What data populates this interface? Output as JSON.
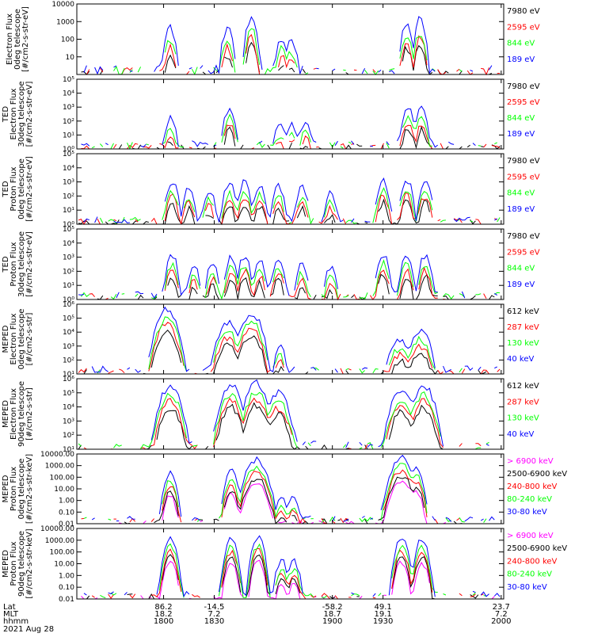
{
  "colors": {
    "black": "#000000",
    "red": "#ff0000",
    "green": "#00ff00",
    "blue": "#0000ff",
    "magenta": "#ff00ff"
  },
  "xaxis": {
    "row_labels": [
      "Lat",
      "MLT",
      "hhmm"
    ],
    "columns": [
      {
        "lat": "86.2",
        "mlt": "18.2",
        "hhmm": "1800",
        "time": 1800
      },
      {
        "lat": "-14.5",
        "mlt": "7.2",
        "hhmm": "1830",
        "time": 1830
      },
      {
        "lat": "-58.2",
        "mlt": "18.7",
        "hhmm": "1900",
        "time": 1900
      },
      {
        "lat": "49.1",
        "mlt": "19.1",
        "hhmm": "1930",
        "time": 1930
      },
      {
        "lat": "23.7",
        "mlt": "7.2",
        "hhmm": "2000",
        "time": 2000
      }
    ],
    "date": "2021 Aug 28"
  },
  "chart_data": [
    {
      "type": "line",
      "scale": "log",
      "ylim": [
        1,
        10000
      ],
      "ylabel_lines": [
        "Electron Flux",
        "0deg telescope",
        "[#/cm2-s-str-eV]"
      ],
      "ytick_labels": [
        "10",
        "100",
        "1000",
        "10000"
      ],
      "series": [
        {
          "name": "7980 eV",
          "color": "#000000"
        },
        {
          "name": "2595 eV",
          "color": "#ff0000"
        },
        {
          "name": "844 eV",
          "color": "#00ff00"
        },
        {
          "name": "189 eV",
          "color": "#0000ff"
        }
      ],
      "events": [
        [
          1804,
          300
        ],
        [
          1838,
          300
        ],
        [
          1852,
          1000
        ],
        [
          1870,
          80
        ],
        [
          1876,
          60
        ],
        [
          1944,
          600
        ],
        [
          1952,
          800
        ]
      ]
    },
    {
      "type": "line",
      "scale": "log",
      "ylim": [
        1,
        100000
      ],
      "ylabel_lines": [
        "TED",
        "Electron Flux",
        "30deg telescope",
        "[#/cm2-s-str-eV]"
      ],
      "ytick_labels": [
        "10⁰",
        "10¹",
        "10²",
        "10³",
        "10⁴",
        "10⁵"
      ],
      "series": [
        {
          "name": "7980 eV",
          "color": "#000000"
        },
        {
          "name": "2595 eV",
          "color": "#ff0000"
        },
        {
          "name": "844 eV",
          "color": "#00ff00"
        },
        {
          "name": "189 eV",
          "color": "#0000ff"
        }
      ],
      "events": [
        [
          1804,
          100
        ],
        [
          1839,
          500
        ],
        [
          1869,
          30
        ],
        [
          1876,
          40
        ],
        [
          1884,
          50
        ],
        [
          1945,
          600
        ],
        [
          1953,
          500
        ]
      ]
    },
    {
      "type": "line",
      "scale": "log",
      "ylim": [
        1,
        100000
      ],
      "ylabel_lines": [
        "TED",
        "Proton Flux",
        "0deg telescope",
        "[#/cm2-s-str-eV]"
      ],
      "ytick_labels": [
        "10⁰",
        "10¹",
        "10²",
        "10³",
        "10⁴",
        "10⁵"
      ],
      "series": [
        {
          "name": "7980 eV",
          "color": "#000000"
        },
        {
          "name": "2595 eV",
          "color": "#ff0000"
        },
        {
          "name": "844 eV",
          "color": "#00ff00"
        },
        {
          "name": "189 eV",
          "color": "#0000ff"
        }
      ],
      "events": [
        [
          1805,
          700
        ],
        [
          1815,
          250
        ],
        [
          1827,
          150
        ],
        [
          1839,
          500
        ],
        [
          1848,
          600
        ],
        [
          1857,
          400
        ],
        [
          1868,
          300
        ],
        [
          1882,
          250
        ],
        [
          1899,
          100
        ],
        [
          1930,
          800
        ],
        [
          1944,
          900
        ],
        [
          1955,
          800
        ]
      ]
    },
    {
      "type": "line",
      "scale": "log",
      "ylim": [
        1,
        100000
      ],
      "ylabel_lines": [
        "TED",
        "Proton Flux",
        "30deg telescope",
        "[#/cm2-s-str-eV]"
      ],
      "ytick_labels": [
        "10⁰",
        "10¹",
        "10²",
        "10³",
        "10⁴",
        "10⁵"
      ],
      "series": [
        {
          "name": "7980 eV",
          "color": "#000000"
        },
        {
          "name": "2595 eV",
          "color": "#ff0000"
        },
        {
          "name": "844 eV",
          "color": "#00ff00"
        },
        {
          "name": "189 eV",
          "color": "#0000ff"
        }
      ],
      "events": [
        [
          1805,
          800
        ],
        [
          1818,
          150
        ],
        [
          1829,
          200
        ],
        [
          1840,
          600
        ],
        [
          1848,
          800
        ],
        [
          1857,
          300
        ],
        [
          1868,
          600
        ],
        [
          1882,
          200
        ],
        [
          1899,
          100
        ],
        [
          1930,
          1000
        ],
        [
          1944,
          900
        ],
        [
          1955,
          900
        ]
      ]
    },
    {
      "type": "line",
      "scale": "log",
      "ylim": [
        10,
        1000000
      ],
      "ylabel_lines": [
        "MEPED",
        "Electron Flux",
        "0deg telescope",
        "[#/cm2-s-str]"
      ],
      "ytick_labels": [
        "10¹",
        "10²",
        "10³",
        "10⁴",
        "10⁵",
        "10⁶"
      ],
      "series": [
        {
          "name": "612 keV",
          "color": "#000000"
        },
        {
          "name": "287 keV",
          "color": "#ff0000"
        },
        {
          "name": "130 keV",
          "color": "#00ff00"
        },
        {
          "name": "40 keV",
          "color": "#0000ff"
        }
      ],
      "events": [
        [
          1802,
          300000
        ],
        [
          1838,
          30000
        ],
        [
          1852,
          150000
        ],
        [
          1869,
          600
        ],
        [
          1940,
          2000
        ],
        [
          1952,
          8000
        ]
      ]
    },
    {
      "type": "line",
      "scale": "log",
      "ylim": [
        10,
        1000000
      ],
      "ylabel_lines": [
        "MEPED",
        "Electron Flux",
        "90deg telescope",
        "[#/cm2-s-str]"
      ],
      "ytick_labels": [
        "10¹",
        "10²",
        "10³",
        "10⁴",
        "10⁵",
        "10⁶"
      ],
      "series": [
        {
          "name": "612 keV",
          "color": "#000000"
        },
        {
          "name": "287 keV",
          "color": "#ff0000"
        },
        {
          "name": "130 keV",
          "color": "#00ff00"
        },
        {
          "name": "40 keV",
          "color": "#0000ff"
        }
      ],
      "events": [
        [
          1804,
          200000
        ],
        [
          1840,
          200000
        ],
        [
          1855,
          300000
        ],
        [
          1868,
          60000
        ],
        [
          1941,
          100000
        ],
        [
          1954,
          200000
        ]
      ]
    },
    {
      "type": "line",
      "scale": "log",
      "ylim": [
        0.01,
        10000
      ],
      "ylabel_lines": [
        "MEPED",
        "Proton Flux",
        "0deg telescope",
        "[#/cm2-s-str-keV]"
      ],
      "ytick_labels": [
        "0.01",
        "0.10",
        "1.00",
        "10.00",
        "100.00",
        "1000.00",
        "10000.00"
      ],
      "series": [
        {
          "name": "> 6900 keV",
          "color": "#ff00ff"
        },
        {
          "name": "2500-6900 keV",
          "color": "#000000"
        },
        {
          "name": "240-800 keV",
          "color": "#ff0000"
        },
        {
          "name": "80-240 keV",
          "color": "#00ff00"
        },
        {
          "name": "30-80 keV",
          "color": "#0000ff"
        }
      ],
      "events": [
        [
          1804,
          150
        ],
        [
          1840,
          200
        ],
        [
          1855,
          2000
        ],
        [
          1870,
          1
        ],
        [
          1877,
          1
        ],
        [
          1941,
          3000
        ],
        [
          1950,
          400
        ]
      ]
    },
    {
      "type": "line",
      "scale": "log",
      "ylim": [
        0.01,
        10000
      ],
      "ylabel_lines": [
        "MEPED",
        "Proton Flux",
        "90deg telescope",
        "[#/cm2-s-str-keV]"
      ],
      "ytick_labels": [
        "0.01",
        "0.10",
        "1.00",
        "10.00",
        "100.00",
        "1000.00",
        "10000.00"
      ],
      "series": [
        {
          "name": "> 6900 keV",
          "color": "#ff00ff"
        },
        {
          "name": "2500-6900 keV",
          "color": "#000000"
        },
        {
          "name": "240-800 keV",
          "color": "#ff0000"
        },
        {
          "name": "80-240 keV",
          "color": "#00ff00"
        },
        {
          "name": "30-80 keV",
          "color": "#0000ff"
        }
      ],
      "events": [
        [
          1804,
          1000
        ],
        [
          1840,
          800
        ],
        [
          1856,
          1000
        ],
        [
          1870,
          10
        ],
        [
          1877,
          10
        ],
        [
          1941,
          1000
        ],
        [
          1953,
          800
        ]
      ]
    }
  ]
}
